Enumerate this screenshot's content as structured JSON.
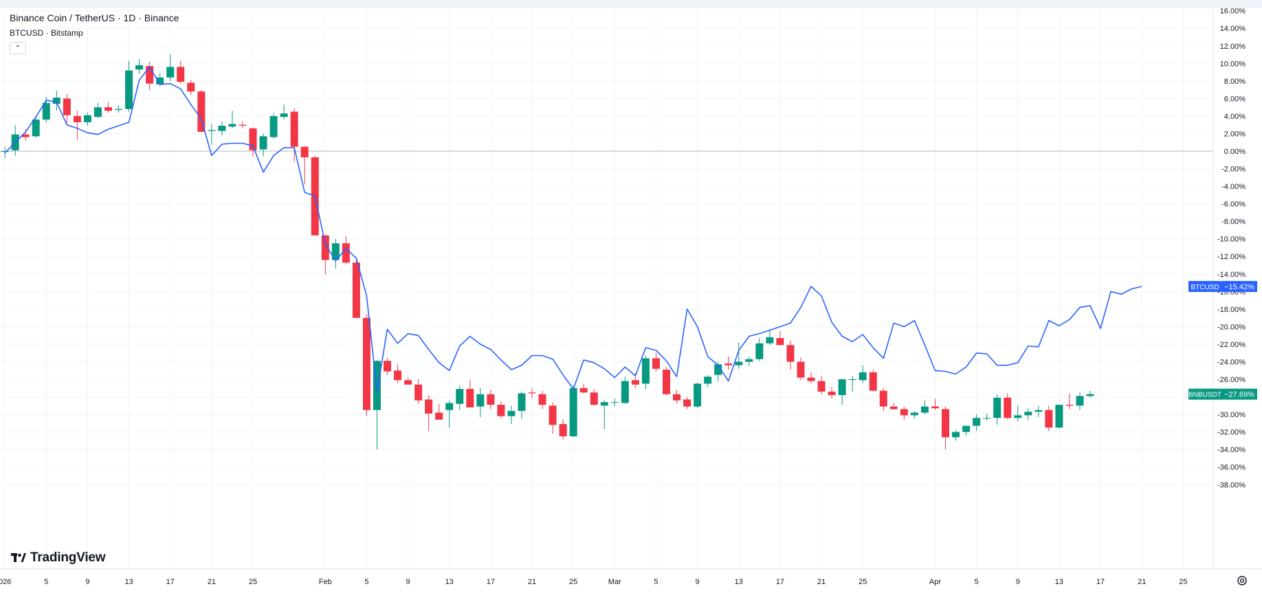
{
  "legend": {
    "main_title": "Binance Coin / TetherUS · 1D · Binance",
    "comparison_title": "BTCUSD · Bitstamp",
    "collapse_icon": "chevron-up-icon"
  },
  "branding": {
    "logo_text": "TradingView"
  },
  "colors": {
    "up": "#089981",
    "down": "#f23645",
    "compare_line": "#2962ff",
    "btc_badge": "#2962ff",
    "bnb_badge": "#089981",
    "grid": "#f0f3fa",
    "zero_line": "#b2b5be"
  },
  "chart_data": {
    "type": "candlestick",
    "percent_scale": true,
    "ylim": [
      -39,
      17
    ],
    "y_ticks": [
      16,
      14,
      12,
      10,
      8,
      6,
      4,
      2,
      0,
      -2,
      -4,
      -6,
      -8,
      -10,
      -12,
      -14,
      -16,
      -18,
      -20,
      -22,
      -24,
      -26,
      -28,
      -30,
      -32,
      -34,
      -36,
      -38
    ],
    "x_tick_labels": [
      {
        "label": "026",
        "date": "2026-01-01"
      },
      {
        "label": "5",
        "date": "2026-01-05"
      },
      {
        "label": "9",
        "date": "2026-01-09"
      },
      {
        "label": "13",
        "date": "2026-01-13"
      },
      {
        "label": "17",
        "date": "2026-01-17"
      },
      {
        "label": "21",
        "date": "2026-01-21"
      },
      {
        "label": "25",
        "date": "2026-01-25"
      },
      {
        "label": "Feb",
        "date": "2026-02-01"
      },
      {
        "label": "5",
        "date": "2026-02-05"
      },
      {
        "label": "9",
        "date": "2026-02-09"
      },
      {
        "label": "13",
        "date": "2026-02-13"
      },
      {
        "label": "17",
        "date": "2026-02-17"
      },
      {
        "label": "21",
        "date": "2026-02-21"
      },
      {
        "label": "25",
        "date": "2026-02-25"
      },
      {
        "label": "Mar",
        "date": "2026-03-01"
      },
      {
        "label": "5",
        "date": "2026-03-05"
      },
      {
        "label": "9",
        "date": "2026-03-09"
      },
      {
        "label": "13",
        "date": "2026-03-13"
      },
      {
        "label": "17",
        "date": "2026-03-17"
      },
      {
        "label": "21",
        "date": "2026-03-21"
      },
      {
        "label": "25",
        "date": "2026-03-25"
      },
      {
        "label": "Apr",
        "date": "2026-04-01"
      },
      {
        "label": "5",
        "date": "2026-04-05"
      },
      {
        "label": "9",
        "date": "2026-04-09"
      },
      {
        "label": "13",
        "date": "2026-04-13"
      },
      {
        "label": "17",
        "date": "2026-04-17"
      },
      {
        "label": "21",
        "date": "2026-04-21"
      },
      {
        "label": "25",
        "date": "2026-04-25"
      }
    ],
    "x_range": [
      "2026-01-01",
      "2026-04-30"
    ],
    "candles": [
      {
        "date": "2026-01-01",
        "o": 0.0,
        "h": 0.5,
        "l": -0.8,
        "c": 0.0
      },
      {
        "date": "2026-01-02",
        "o": 0.1,
        "h": 3.0,
        "l": -0.5,
        "c": 1.9
      },
      {
        "date": "2026-01-03",
        "o": 1.9,
        "h": 2.5,
        "l": 1.2,
        "c": 1.6
      },
      {
        "date": "2026-01-04",
        "o": 1.7,
        "h": 4.0,
        "l": 1.5,
        "c": 3.6
      },
      {
        "date": "2026-01-05",
        "o": 3.6,
        "h": 6.2,
        "l": 3.3,
        "c": 5.5
      },
      {
        "date": "2026-01-06",
        "o": 5.4,
        "h": 6.9,
        "l": 4.6,
        "c": 6.1
      },
      {
        "date": "2026-01-07",
        "o": 6.0,
        "h": 6.5,
        "l": 3.2,
        "c": 4.1
      },
      {
        "date": "2026-01-08",
        "o": 4.0,
        "h": 4.6,
        "l": 1.3,
        "c": 3.3
      },
      {
        "date": "2026-01-09",
        "o": 3.3,
        "h": 4.4,
        "l": 2.9,
        "c": 4.1
      },
      {
        "date": "2026-01-10",
        "o": 3.9,
        "h": 5.5,
        "l": 3.8,
        "c": 5.0
      },
      {
        "date": "2026-01-11",
        "o": 5.0,
        "h": 5.6,
        "l": 4.4,
        "c": 4.6
      },
      {
        "date": "2026-01-12",
        "o": 4.7,
        "h": 5.2,
        "l": 4.4,
        "c": 4.8
      },
      {
        "date": "2026-01-13",
        "o": 4.8,
        "h": 10.3,
        "l": 4.5,
        "c": 9.2
      },
      {
        "date": "2026-01-14",
        "o": 9.3,
        "h": 10.5,
        "l": 8.8,
        "c": 9.8
      },
      {
        "date": "2026-01-15",
        "o": 9.7,
        "h": 10.2,
        "l": 7.0,
        "c": 7.7
      },
      {
        "date": "2026-01-16",
        "o": 7.6,
        "h": 8.9,
        "l": 7.4,
        "c": 8.4
      },
      {
        "date": "2026-01-17",
        "o": 8.4,
        "h": 11.0,
        "l": 8.0,
        "c": 9.6
      },
      {
        "date": "2026-01-18",
        "o": 9.6,
        "h": 10.3,
        "l": 7.7,
        "c": 7.9
      },
      {
        "date": "2026-01-19",
        "o": 7.8,
        "h": 8.1,
        "l": 6.4,
        "c": 6.8
      },
      {
        "date": "2026-01-20",
        "o": 6.8,
        "h": 7.0,
        "l": 2.2,
        "c": 2.2
      },
      {
        "date": "2026-01-21",
        "o": 2.3,
        "h": 3.1,
        "l": 0.7,
        "c": 2.4
      },
      {
        "date": "2026-01-22",
        "o": 2.3,
        "h": 3.4,
        "l": 1.8,
        "c": 2.9
      },
      {
        "date": "2026-01-23",
        "o": 2.8,
        "h": 4.6,
        "l": 2.6,
        "c": 3.1
      },
      {
        "date": "2026-01-24",
        "o": 3.0,
        "h": 3.4,
        "l": 2.6,
        "c": 2.9
      },
      {
        "date": "2026-01-25",
        "o": 2.6,
        "h": 2.7,
        "l": -0.6,
        "c": 0.1
      },
      {
        "date": "2026-01-26",
        "o": 0.2,
        "h": 2.0,
        "l": -0.6,
        "c": 1.7
      },
      {
        "date": "2026-01-27",
        "o": 1.6,
        "h": 4.3,
        "l": 1.4,
        "c": 4.0
      },
      {
        "date": "2026-01-28",
        "o": 3.9,
        "h": 5.3,
        "l": 3.6,
        "c": 4.3
      },
      {
        "date": "2026-01-29",
        "o": 4.5,
        "h": 4.9,
        "l": -1.2,
        "c": 0.5
      },
      {
        "date": "2026-01-30",
        "o": 0.5,
        "h": 0.6,
        "l": -3.8,
        "c": -0.7
      },
      {
        "date": "2026-01-31",
        "o": -0.7,
        "h": -0.5,
        "l": -9.6,
        "c": -9.6
      },
      {
        "date": "2026-02-01",
        "o": -9.6,
        "h": -9.5,
        "l": -14.1,
        "c": -12.4
      },
      {
        "date": "2026-02-02",
        "o": -12.4,
        "h": -10.0,
        "l": -13.4,
        "c": -10.5
      },
      {
        "date": "2026-02-03",
        "o": -10.5,
        "h": -9.7,
        "l": -12.9,
        "c": -12.7
      },
      {
        "date": "2026-02-04",
        "o": -12.7,
        "h": -12.4,
        "l": -19.0,
        "c": -19.0
      },
      {
        "date": "2026-02-05",
        "o": -19.0,
        "h": -18.6,
        "l": -30.2,
        "c": -29.5
      },
      {
        "date": "2026-02-06",
        "o": -29.5,
        "h": -23.8,
        "l": -34.0,
        "c": -23.9
      },
      {
        "date": "2026-02-07",
        "o": -23.9,
        "h": -23.6,
        "l": -25.5,
        "c": -25.1
      },
      {
        "date": "2026-02-08",
        "o": -25.0,
        "h": -24.3,
        "l": -26.4,
        "c": -26.1
      },
      {
        "date": "2026-02-09",
        "o": -26.1,
        "h": -25.8,
        "l": -26.6,
        "c": -26.6
      },
      {
        "date": "2026-02-10",
        "o": -26.6,
        "h": -26.0,
        "l": -28.8,
        "c": -28.4
      },
      {
        "date": "2026-02-11",
        "o": -28.3,
        "h": -27.8,
        "l": -31.9,
        "c": -29.9
      },
      {
        "date": "2026-02-12",
        "o": -29.8,
        "h": -28.8,
        "l": -30.6,
        "c": -30.6
      },
      {
        "date": "2026-02-13",
        "o": -29.5,
        "h": -28.4,
        "l": -31.5,
        "c": -28.7
      },
      {
        "date": "2026-02-14",
        "o": -28.8,
        "h": -26.7,
        "l": -29.5,
        "c": -27.1
      },
      {
        "date": "2026-02-15",
        "o": -27.1,
        "h": -26.1,
        "l": -29.2,
        "c": -29.2
      },
      {
        "date": "2026-02-16",
        "o": -29.1,
        "h": -27.0,
        "l": -30.3,
        "c": -27.7
      },
      {
        "date": "2026-02-17",
        "o": -27.7,
        "h": -27.2,
        "l": -29.4,
        "c": -28.9
      },
      {
        "date": "2026-02-18",
        "o": -28.9,
        "h": -28.5,
        "l": -30.4,
        "c": -30.2
      },
      {
        "date": "2026-02-19",
        "o": -30.2,
        "h": -29.0,
        "l": -31.1,
        "c": -29.6
      },
      {
        "date": "2026-02-20",
        "o": -29.6,
        "h": -27.4,
        "l": -30.5,
        "c": -27.6
      },
      {
        "date": "2026-02-21",
        "o": -27.5,
        "h": -27.0,
        "l": -28.2,
        "c": -27.6
      },
      {
        "date": "2026-02-22",
        "o": -27.7,
        "h": -27.3,
        "l": -29.4,
        "c": -28.9
      },
      {
        "date": "2026-02-23",
        "o": -29.0,
        "h": -28.6,
        "l": -32.2,
        "c": -31.2
      },
      {
        "date": "2026-02-24",
        "o": -31.1,
        "h": -30.6,
        "l": -32.9,
        "c": -32.5
      },
      {
        "date": "2026-02-25",
        "o": -32.5,
        "h": -26.7,
        "l": -32.6,
        "c": -27.0
      },
      {
        "date": "2026-02-26",
        "o": -27.0,
        "h": -26.5,
        "l": -27.6,
        "c": -27.5
      },
      {
        "date": "2026-02-27",
        "o": -27.5,
        "h": -27.1,
        "l": -29.0,
        "c": -28.9
      },
      {
        "date": "2026-02-28",
        "o": -29.0,
        "h": -28.4,
        "l": -31.7,
        "c": -28.6
      },
      {
        "date": "2026-03-01",
        "o": -28.6,
        "h": -28.2,
        "l": -29.1,
        "c": -28.6
      },
      {
        "date": "2026-03-02",
        "o": -28.7,
        "h": -25.7,
        "l": -28.8,
        "c": -26.2
      },
      {
        "date": "2026-03-03",
        "o": -26.1,
        "h": -25.3,
        "l": -27.0,
        "c": -26.6
      },
      {
        "date": "2026-03-04",
        "o": -26.5,
        "h": -23.3,
        "l": -27.1,
        "c": -23.6
      },
      {
        "date": "2026-03-05",
        "o": -23.6,
        "h": -23.0,
        "l": -25.1,
        "c": -24.8
      },
      {
        "date": "2026-03-06",
        "o": -24.9,
        "h": -24.6,
        "l": -27.8,
        "c": -27.7
      },
      {
        "date": "2026-03-07",
        "o": -27.7,
        "h": -27.2,
        "l": -28.8,
        "c": -28.4
      },
      {
        "date": "2026-03-08",
        "o": -28.3,
        "h": -28.0,
        "l": -29.4,
        "c": -29.1
      },
      {
        "date": "2026-03-09",
        "o": -29.1,
        "h": -26.4,
        "l": -29.3,
        "c": -26.5
      },
      {
        "date": "2026-03-10",
        "o": -26.5,
        "h": -25.5,
        "l": -26.9,
        "c": -25.7
      },
      {
        "date": "2026-03-11",
        "o": -25.5,
        "h": -24.0,
        "l": -26.2,
        "c": -24.3
      },
      {
        "date": "2026-03-12",
        "o": -24.2,
        "h": -23.4,
        "l": -24.9,
        "c": -24.4
      },
      {
        "date": "2026-03-13",
        "o": -24.4,
        "h": -21.8,
        "l": -24.8,
        "c": -24.0
      },
      {
        "date": "2026-03-14",
        "o": -24.0,
        "h": -23.4,
        "l": -24.5,
        "c": -23.7
      },
      {
        "date": "2026-03-15",
        "o": -23.7,
        "h": -21.3,
        "l": -23.9,
        "c": -21.9
      },
      {
        "date": "2026-03-16",
        "o": -21.9,
        "h": -20.4,
        "l": -22.1,
        "c": -21.2
      },
      {
        "date": "2026-03-17",
        "o": -21.3,
        "h": -20.5,
        "l": -22.0,
        "c": -22.1
      },
      {
        "date": "2026-03-18",
        "o": -22.1,
        "h": -21.6,
        "l": -24.9,
        "c": -24.0
      },
      {
        "date": "2026-03-19",
        "o": -24.0,
        "h": -23.5,
        "l": -26.1,
        "c": -25.8
      },
      {
        "date": "2026-03-20",
        "o": -25.8,
        "h": -25.2,
        "l": -26.5,
        "c": -26.2
      },
      {
        "date": "2026-03-21",
        "o": -26.2,
        "h": -25.6,
        "l": -27.7,
        "c": -27.4
      },
      {
        "date": "2026-03-22",
        "o": -27.4,
        "h": -26.9,
        "l": -28.2,
        "c": -27.8
      },
      {
        "date": "2026-03-23",
        "o": -27.8,
        "h": -26.0,
        "l": -28.9,
        "c": -26.0
      },
      {
        "date": "2026-03-24",
        "o": -26.0,
        "h": -25.6,
        "l": -27.4,
        "c": -26.0
      },
      {
        "date": "2026-03-25",
        "o": -26.1,
        "h": -24.4,
        "l": -26.4,
        "c": -25.2
      },
      {
        "date": "2026-03-26",
        "o": -25.2,
        "h": -24.9,
        "l": -27.4,
        "c": -27.3
      },
      {
        "date": "2026-03-27",
        "o": -27.3,
        "h": -27.0,
        "l": -29.6,
        "c": -29.1
      },
      {
        "date": "2026-03-28",
        "o": -29.1,
        "h": -28.7,
        "l": -29.5,
        "c": -29.4
      },
      {
        "date": "2026-03-29",
        "o": -29.4,
        "h": -29.1,
        "l": -30.6,
        "c": -30.1
      },
      {
        "date": "2026-03-30",
        "o": -30.1,
        "h": -29.6,
        "l": -30.5,
        "c": -29.8
      },
      {
        "date": "2026-03-31",
        "o": -29.8,
        "h": -28.4,
        "l": -30.0,
        "c": -29.1
      },
      {
        "date": "2026-04-01",
        "o": -29.1,
        "h": -28.2,
        "l": -29.5,
        "c": -29.3
      },
      {
        "date": "2026-04-02",
        "o": -29.4,
        "h": -29.1,
        "l": -34.0,
        "c": -32.6
      },
      {
        "date": "2026-04-03",
        "o": -32.6,
        "h": -31.8,
        "l": -33.0,
        "c": -32.0
      },
      {
        "date": "2026-04-04",
        "o": -32.0,
        "h": -31.4,
        "l": -32.4,
        "c": -31.3
      },
      {
        "date": "2026-04-05",
        "o": -31.3,
        "h": -30.0,
        "l": -31.9,
        "c": -30.4
      },
      {
        "date": "2026-04-06",
        "o": -30.4,
        "h": -29.9,
        "l": -30.7,
        "c": -30.4
      },
      {
        "date": "2026-04-07",
        "o": -30.4,
        "h": -27.7,
        "l": -31.2,
        "c": -28.1
      },
      {
        "date": "2026-04-08",
        "o": -28.1,
        "h": -27.6,
        "l": -30.6,
        "c": -30.4
      },
      {
        "date": "2026-04-09",
        "o": -30.4,
        "h": -29.0,
        "l": -30.8,
        "c": -30.1
      },
      {
        "date": "2026-04-10",
        "o": -30.1,
        "h": -29.3,
        "l": -30.7,
        "c": -29.7
      },
      {
        "date": "2026-04-11",
        "o": -29.7,
        "h": -29.0,
        "l": -30.3,
        "c": -29.5
      },
      {
        "date": "2026-04-12",
        "o": -29.5,
        "h": -29.0,
        "l": -31.9,
        "c": -31.5
      },
      {
        "date": "2026-04-13",
        "o": -31.5,
        "h": -28.9,
        "l": -31.6,
        "c": -28.9
      },
      {
        "date": "2026-04-14",
        "o": -28.9,
        "h": -27.6,
        "l": -29.4,
        "c": -29.0
      },
      {
        "date": "2026-04-15",
        "o": -29.0,
        "h": -27.5,
        "l": -29.5,
        "c": -27.9
      },
      {
        "date": "2026-04-16",
        "o": -27.9,
        "h": -27.3,
        "l": -28.1,
        "c": -27.69
      }
    ],
    "series": [
      {
        "name": "BTCUSD",
        "type": "line",
        "values": [
          -0.2,
          1.0,
          2.2,
          3.9,
          5.8,
          5.6,
          3.0,
          2.6,
          2.1,
          1.9,
          2.5,
          2.9,
          3.3,
          8.1,
          9.6,
          7.6,
          7.7,
          7.1,
          5.3,
          3.7,
          -0.5,
          0.8,
          0.9,
          0.9,
          0.6,
          -2.4,
          -0.5,
          0.4,
          0.4,
          -4.7,
          -5.1,
          -10.6,
          -12.5,
          -11.1,
          -12.2,
          -16.5,
          -27.4,
          -20.3,
          -21.9,
          -20.8,
          -21.0,
          -22.6,
          -24.1,
          -25.0,
          -22.2,
          -21.1,
          -22.0,
          -22.6,
          -23.8,
          -24.9,
          -24.4,
          -23.3,
          -23.3,
          -23.7,
          -25.5,
          -27.1,
          -23.8,
          -24.1,
          -24.8,
          -25.8,
          -24.6,
          -25.6,
          -22.4,
          -22.7,
          -23.9,
          -25.7,
          -18.0,
          -20.0,
          -23.4,
          -24.4,
          -26.2,
          -22.7,
          -21.1,
          -20.8,
          -20.4,
          -20.0,
          -19.6,
          -17.8,
          -15.42,
          -16.5,
          -19.5,
          -21.1,
          -21.7,
          -20.9,
          -22.4,
          -23.6,
          -19.6,
          -20.0,
          -19.3,
          -22.1,
          -25.0,
          -25.1,
          -25.4,
          -24.6,
          -23.0,
          -23.1,
          -24.4,
          -24.4,
          -24.1,
          -22.2,
          -22.3,
          -19.3,
          -19.9,
          -19.2,
          -17.8,
          -17.6,
          -20.2,
          -16.0,
          -16.3,
          -15.7,
          -15.42
        ]
      }
    ],
    "price_labels": [
      {
        "symbol": "BTCUSD",
        "value": -15.42,
        "text": "−15.42%"
      },
      {
        "symbol": "BNBUSDT",
        "value": -27.69,
        "text": "−27.69%"
      }
    ]
  }
}
